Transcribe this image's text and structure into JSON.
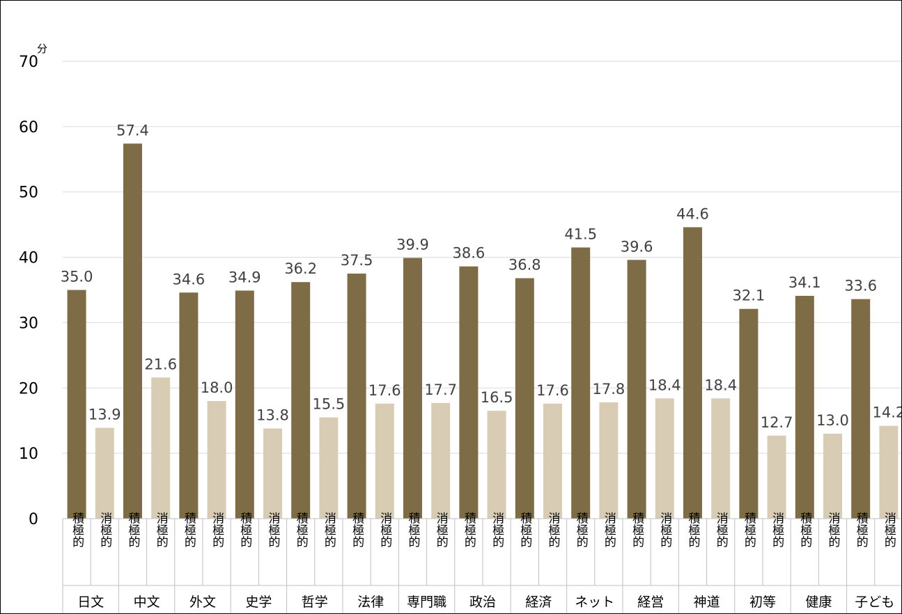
{
  "chart_data": {
    "type": "bar",
    "unit_label": "分",
    "ylim": [
      0,
      70
    ],
    "yticks": [
      "0",
      "10",
      "20",
      "30",
      "40",
      "50",
      "60",
      "70"
    ],
    "grid": true,
    "legend": "none",
    "categories": [
      "日文",
      "中文",
      "外文",
      "史学",
      "哲学",
      "法律",
      "専門職",
      "政治",
      "経済",
      "ネット",
      "経営",
      "神道",
      "初等",
      "健康",
      "子ども"
    ],
    "subcategories": [
      "積極的",
      "消極的"
    ],
    "series": [
      {
        "values": [
          35.0,
          57.4,
          34.6,
          34.9,
          36.2,
          37.5,
          39.9,
          38.6,
          36.8,
          41.5,
          39.6,
          44.6,
          32.1,
          34.1,
          33.6
        ],
        "labels": [
          "35.0",
          "57.4",
          "34.6",
          "34.9",
          "36.2",
          "37.5",
          "39.9",
          "38.6",
          "36.8",
          "41.5",
          "39.6",
          "44.6",
          "32.1",
          "34.1",
          "33.6"
        ]
      },
      {
        "values": [
          13.9,
          21.6,
          18.0,
          13.8,
          15.5,
          17.6,
          17.7,
          16.5,
          17.6,
          17.8,
          18.4,
          18.4,
          12.7,
          13.0,
          14.2
        ],
        "labels": [
          "13.9",
          "21.6",
          "18.0",
          "13.8",
          "15.5",
          "17.6",
          "17.7",
          "16.5",
          "17.6",
          "17.8",
          "18.4",
          "18.4",
          "12.7",
          "13.0",
          "14.2"
        ]
      }
    ],
    "colors": {
      "series_1": "#7d6c45",
      "series_2": "#d8cdb4",
      "grid": "#d9d9d9",
      "axis": "#bfbfbf"
    }
  }
}
